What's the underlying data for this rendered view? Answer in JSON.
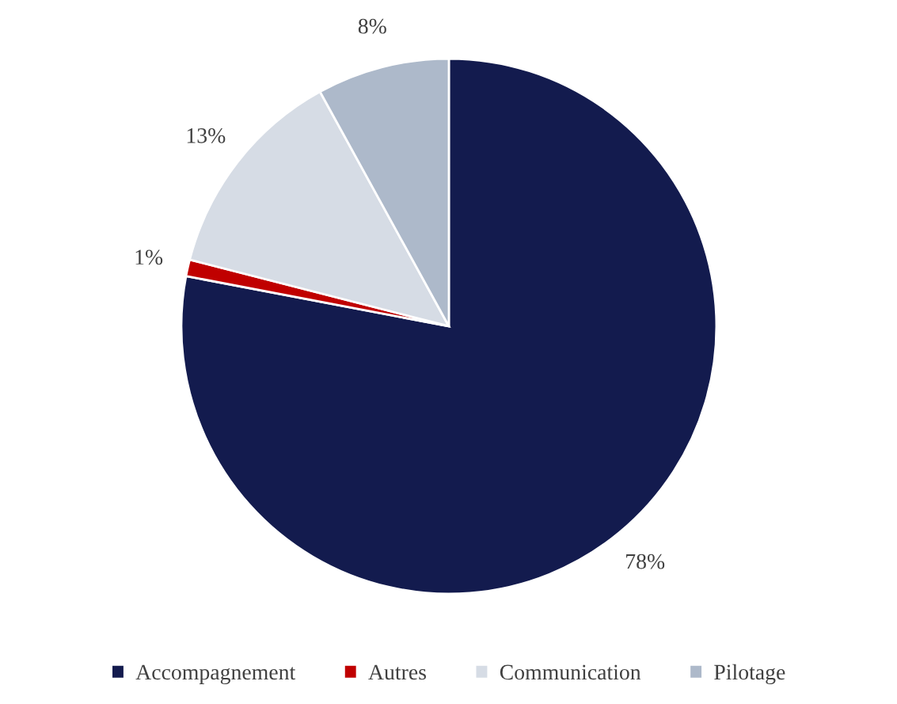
{
  "chart_data": {
    "type": "pie",
    "categories": [
      "Accompagnement",
      "Autres",
      "Communication",
      "Pilotage"
    ],
    "values": [
      78,
      1,
      13,
      8
    ],
    "value_labels": [
      "78%",
      "1%",
      "13%",
      "8%"
    ],
    "colors": [
      "#131b4e",
      "#c00000",
      "#d6dce5",
      "#adb9ca"
    ],
    "legend": "bottom"
  }
}
